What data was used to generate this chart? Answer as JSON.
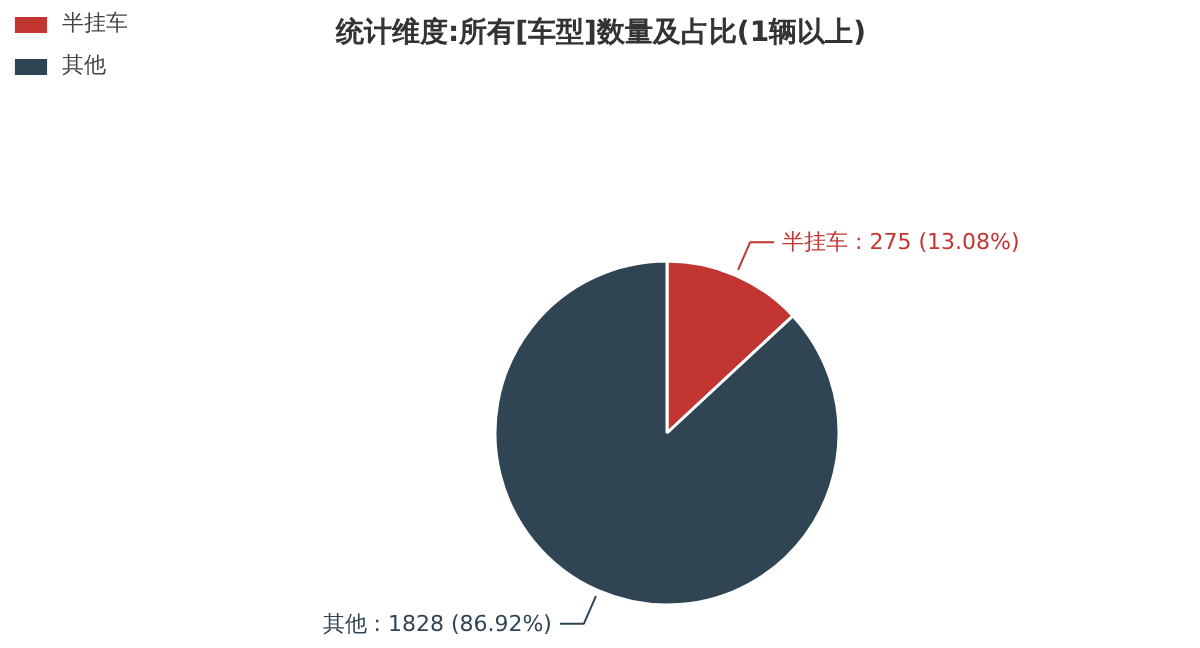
{
  "chart_data": {
    "type": "pie",
    "title": "统计维度:所有[车型]数量及占比(1辆以上)",
    "categories": [
      "半挂车",
      "其他"
    ],
    "values": [
      275,
      1828
    ],
    "colors": [
      "#c23531",
      "#2f4554"
    ],
    "value_labels": [
      "半挂车 : 275 (13.08%)",
      "其他 : 1828 (86.92%)"
    ],
    "legend": "top left"
  }
}
